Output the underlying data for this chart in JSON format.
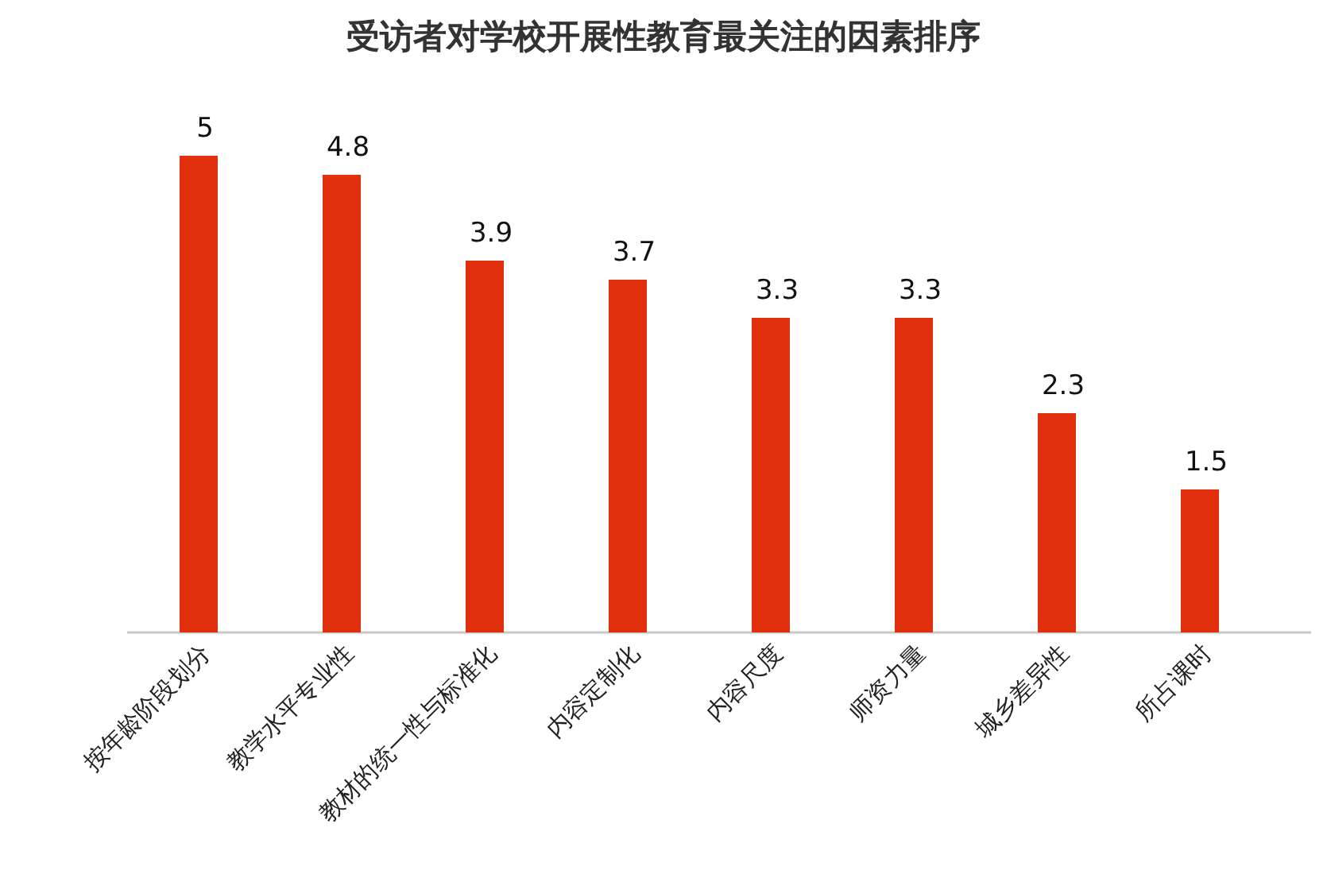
{
  "chart_data": {
    "type": "bar",
    "title": "受访者对学校开展性教育最关注的因素排序",
    "categories": [
      "按年龄阶段划分",
      "教学水平专业性",
      "教材的统一性与标准化",
      "内容定制化",
      "内容尺度",
      "师资力量",
      "城乡差异性",
      "所占课时"
    ],
    "values": [
      5,
      4.8,
      3.9,
      3.7,
      3.3,
      3.3,
      2.3,
      1.5
    ],
    "color": "#e0300e",
    "data_labels": true
  }
}
